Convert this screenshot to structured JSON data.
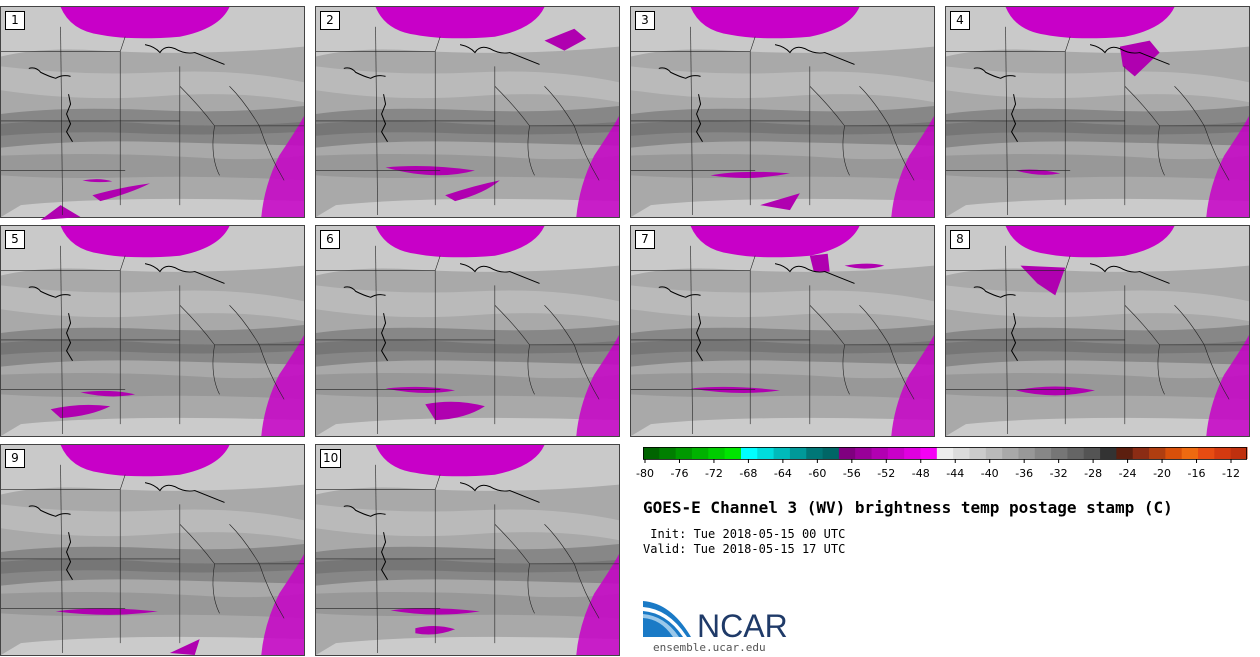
{
  "panels": [
    {
      "label": "1"
    },
    {
      "label": "2"
    },
    {
      "label": "3"
    },
    {
      "label": "4"
    },
    {
      "label": "5"
    },
    {
      "label": "6"
    },
    {
      "label": "7"
    },
    {
      "label": "8"
    },
    {
      "label": "9"
    },
    {
      "label": "10"
    }
  ],
  "colorbar": {
    "colors": [
      "#006400",
      "#007f00",
      "#009900",
      "#00b200",
      "#00cc00",
      "#00e600",
      "#00ffff",
      "#00dddd",
      "#00bbbb",
      "#009999",
      "#007777",
      "#006666",
      "#7f007f",
      "#990099",
      "#b200b2",
      "#c800c8",
      "#e000e0",
      "#f500f5",
      "#ededed",
      "#dcdcdc",
      "#cbcbcb",
      "#bababa",
      "#a9a9a9",
      "#989898",
      "#878787",
      "#767676",
      "#656565",
      "#545454",
      "#333333",
      "#5c1f0f",
      "#8b2c14",
      "#b03e10",
      "#d9500a",
      "#ee6a10",
      "#e74c12",
      "#d43a10",
      "#c0300e"
    ],
    "tick_labels": [
      "-80",
      "-76",
      "-72",
      "-68",
      "-64",
      "-60",
      "-56",
      "-52",
      "-48",
      "-44",
      "-40",
      "-36",
      "-32",
      "-28",
      "-24",
      "-20",
      "-16",
      "-12"
    ]
  },
  "title": "GOES-E Channel 3 (WV) brightness temp postage stamp (C)",
  "init": " Init: Tue 2018-05-15 00 UTC",
  "valid": "Valid: Tue 2018-05-15 17 UTC",
  "logo_text": "NCAR",
  "url": "ensemble.ucar.edu"
}
